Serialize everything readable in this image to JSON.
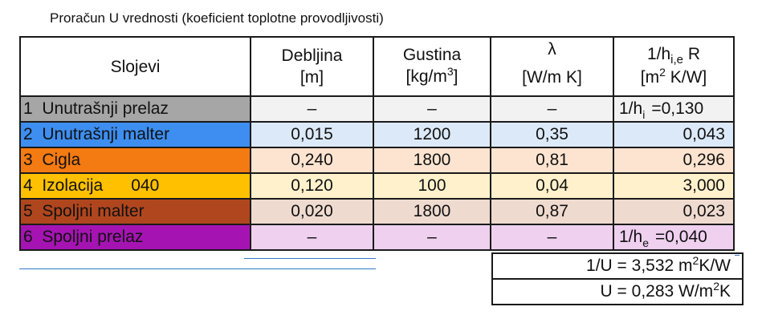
{
  "title": "Proračun U vrednosti (koeficient toplotne provodljivosti)",
  "header": {
    "layers": "Slojevi",
    "thickness_line1": "Debljina",
    "thickness_line2": "[m]",
    "density_line1": "Gustina",
    "density_line2_pre": "[kg/m",
    "density_line2_sup": "3",
    "density_line2_post": "]",
    "lambda_line1": "λ",
    "lambda_line2": "[W/m K]",
    "resist_line1_pre": "1/h",
    "resist_line1_sub": "i,e",
    "resist_line1_post": " R",
    "resist_line2_pre": "[m",
    "resist_line2_sup": "2",
    "resist_line2_post": " K/W]"
  },
  "rows": [
    {
      "label": "1  Unutrašnji prelaz",
      "color": "#a6a6a6",
      "row_bg": "#f2f2f2",
      "thickness": "–",
      "density": "–",
      "lambda": "–",
      "r_prefix": "1/h",
      "r_sub": "i",
      "r_value": "=0,130"
    },
    {
      "label": "2  Unutrašnji malter",
      "color": "#3d8ef0",
      "row_bg": "#dce9f8",
      "thickness": "0,015",
      "density": "1200",
      "lambda": "0,35",
      "r_prefix": "",
      "r_sub": "",
      "r_value": "0,043"
    },
    {
      "label": "3  Cigla",
      "color": "#f47a12",
      "row_bg": "#fde4d0",
      "thickness": "0,240",
      "density": "1800",
      "lambda": "0,81",
      "r_prefix": "",
      "r_sub": "",
      "r_value": "0,296"
    },
    {
      "label": "4  Izolacija      040",
      "color": "#ffc000",
      "row_bg": "#fff1cc",
      "thickness": "0,120",
      "density": "100",
      "lambda": "0,04",
      "r_prefix": "",
      "r_sub": "",
      "r_value": "3,000"
    },
    {
      "label": "5  Spoljni malter",
      "color": "#b0461e",
      "row_bg": "#efdad0",
      "thickness": "0,020",
      "density": "1800",
      "lambda": "0,87",
      "r_prefix": "",
      "r_sub": "",
      "r_value": "0,023"
    },
    {
      "label": "6  Spoljni prelaz",
      "color": "#a514b2",
      "row_bg": "#efd0ef",
      "thickness": "–",
      "density": "–",
      "lambda": "–",
      "r_prefix": "1/h",
      "r_sub": "e",
      "r_value": "=0,040"
    }
  ],
  "results": {
    "inv_u_pre": "1/U = 3,532 m",
    "inv_u_sup": "2",
    "inv_u_post": "K/W",
    "u_pre": "U = 0,283 W/m",
    "u_sup": "2",
    "u_post": "K"
  },
  "colors": {
    "border": "#1a1a1a",
    "accent_line": "#2e78c8"
  }
}
